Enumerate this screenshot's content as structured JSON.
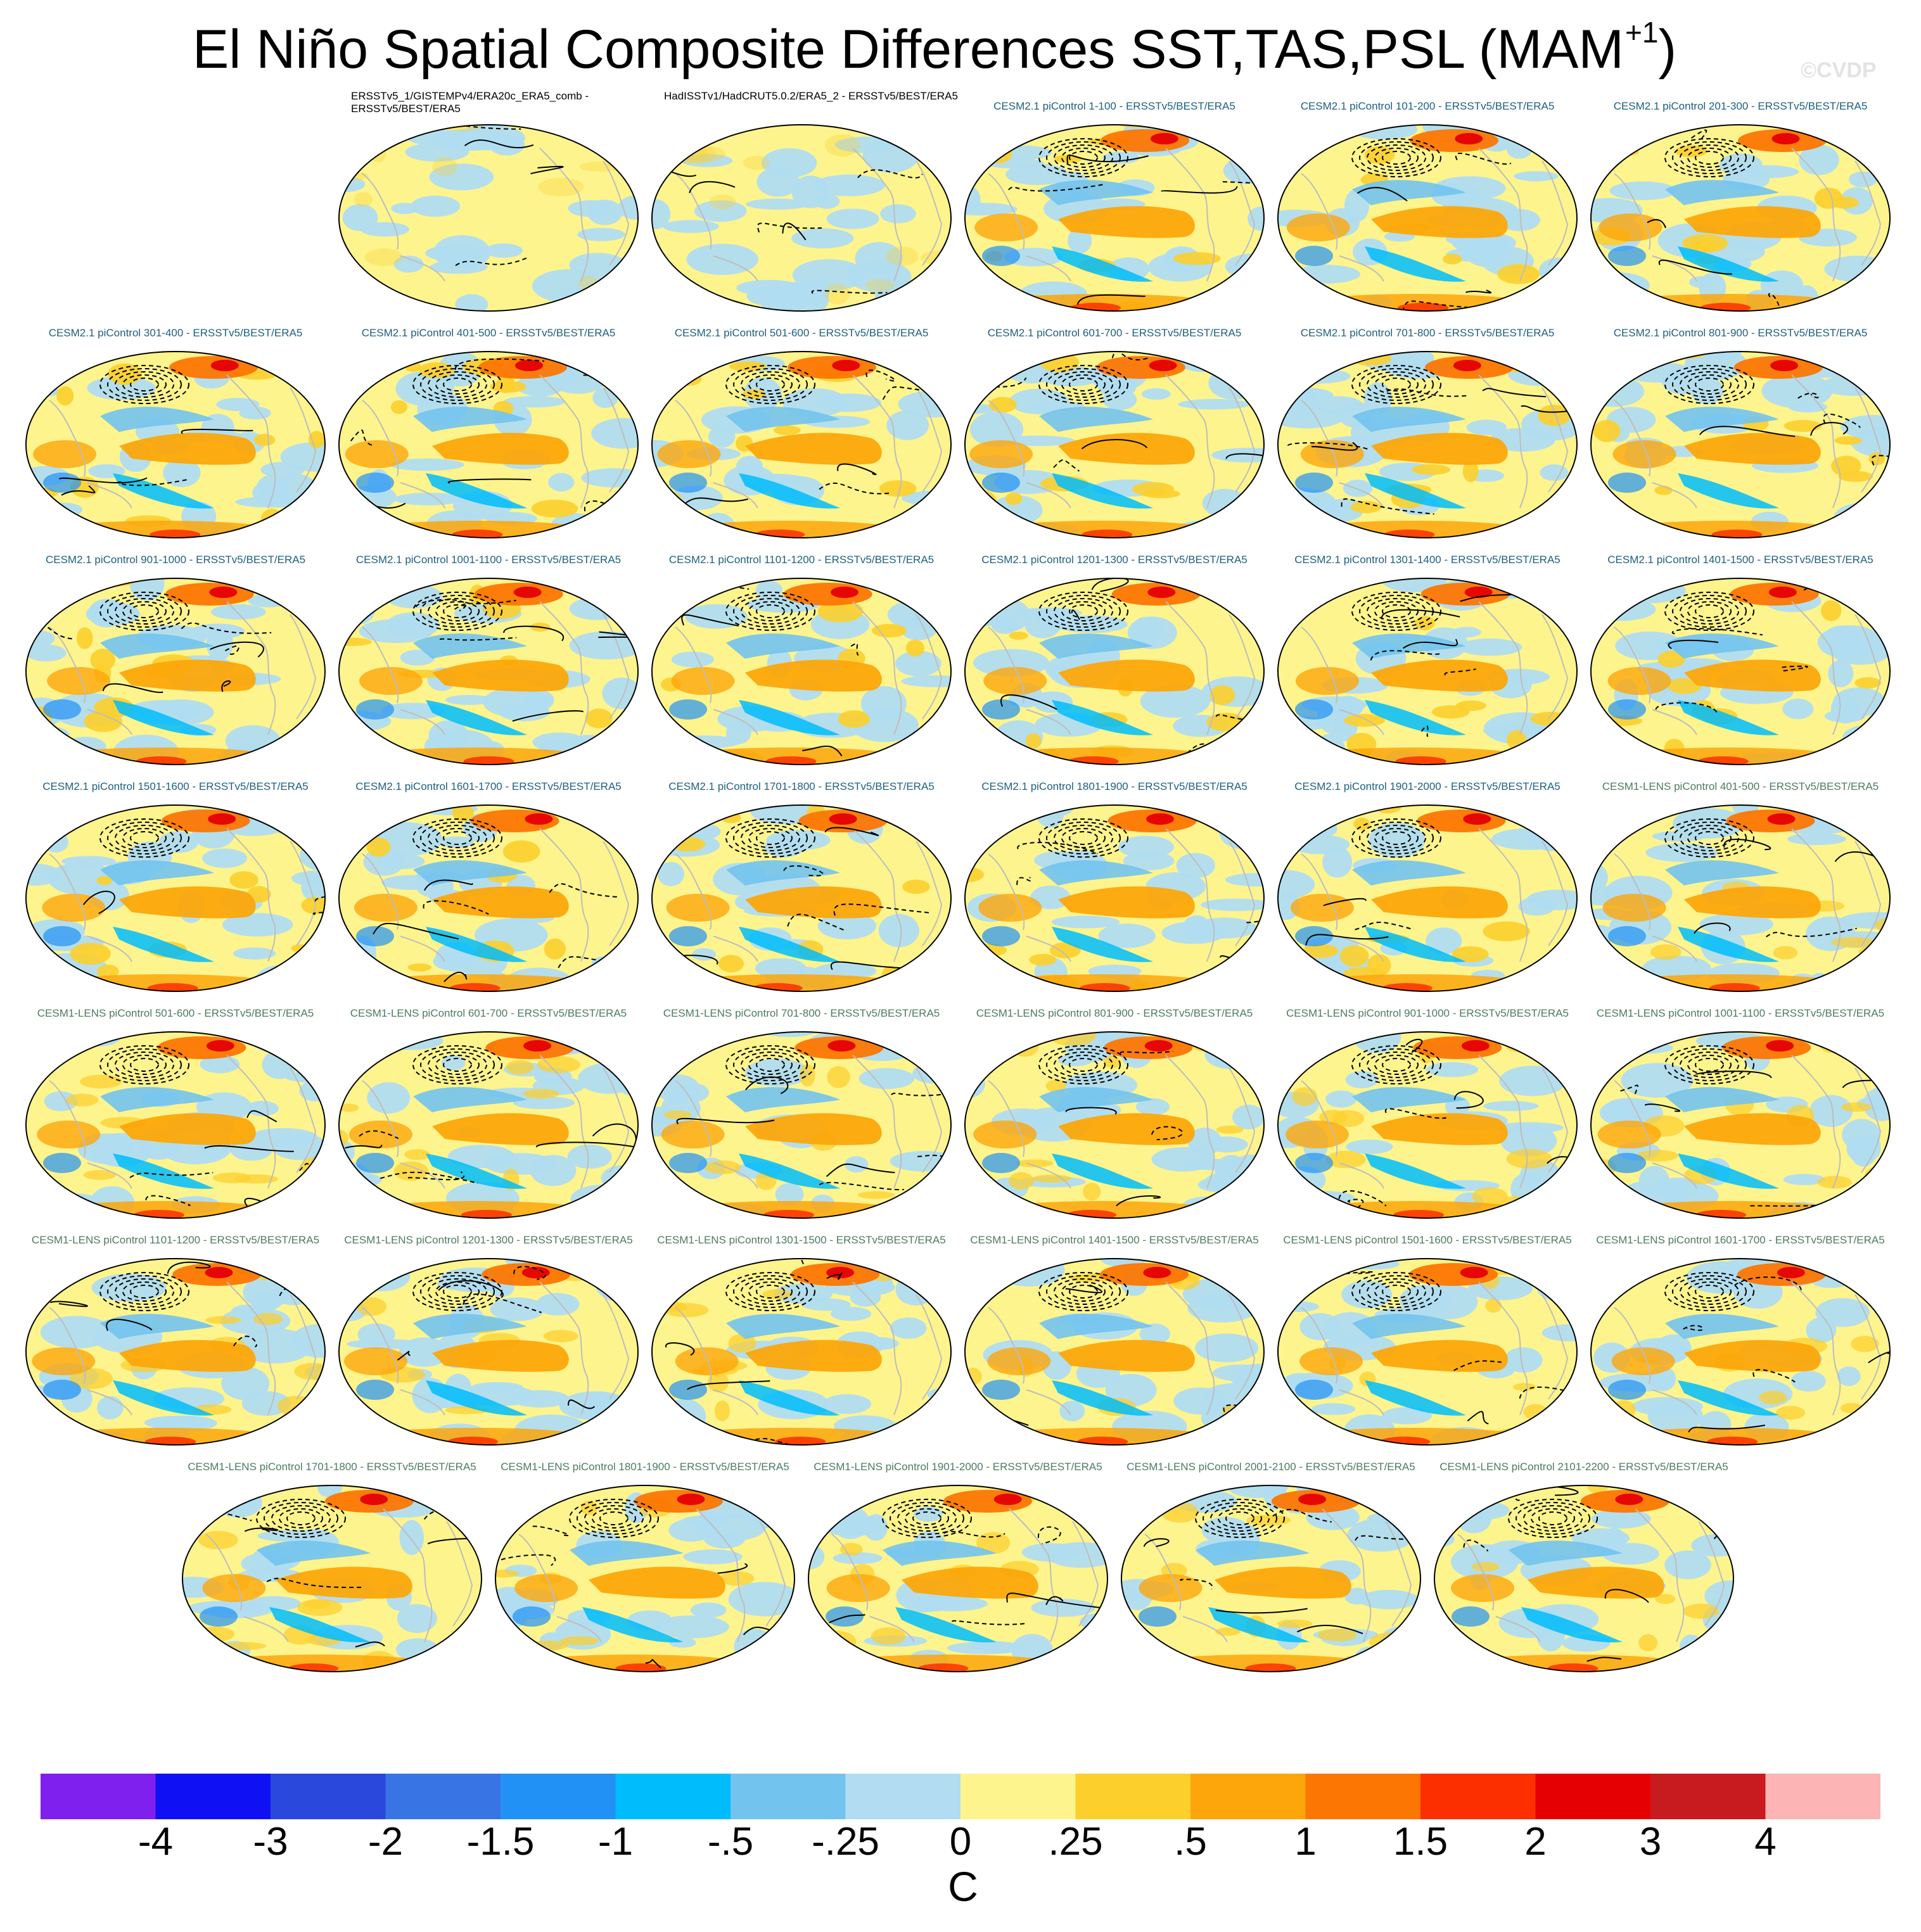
{
  "page": {
    "title": "El Niño Spatial Composite Differences SST,TAS,PSL (MAM",
    "title_superscript": "+1",
    "title_close": ")",
    "watermark": "©CVDP"
  },
  "colors": {
    "land_outline": "#bdbdbd",
    "contour": "#000000"
  },
  "chart_data": {
    "type": "heatmap",
    "description_kind": "panel grid of global maps",
    "panels": [
      {
        "title": "ERSSTv5_1/GISTEMPv4/ERA20c_ERA5_comb - ERSSTv5/BEST/ERA5",
        "group": "obs",
        "pattern": "weak"
      },
      {
        "title": "HadISSTv1/HadCRUT5.0.2/ERA5_2 - ERSSTv5/BEST/ERA5",
        "group": "obs",
        "pattern": "weak"
      },
      {
        "title": "CESM2.1 piControl 1-100 - ERSSTv5/BEST/ERA5",
        "group": "cesm2",
        "pattern": "strong"
      },
      {
        "title": "CESM2.1 piControl 101-200 - ERSSTv5/BEST/ERA5",
        "group": "cesm2",
        "pattern": "strong"
      },
      {
        "title": "CESM2.1 piControl 201-300 - ERSSTv5/BEST/ERA5",
        "group": "cesm2",
        "pattern": "strong"
      },
      {
        "title": "CESM2.1 piControl 301-400 - ERSSTv5/BEST/ERA5",
        "group": "cesm2",
        "pattern": "strong"
      },
      {
        "title": "CESM2.1 piControl 401-500 - ERSSTv5/BEST/ERA5",
        "group": "cesm2",
        "pattern": "strong"
      },
      {
        "title": "CESM2.1 piControl 501-600 - ERSSTv5/BEST/ERA5",
        "group": "cesm2",
        "pattern": "strong"
      },
      {
        "title": "CESM2.1 piControl 601-700 - ERSSTv5/BEST/ERA5",
        "group": "cesm2",
        "pattern": "strong"
      },
      {
        "title": "CESM2.1 piControl 701-800 - ERSSTv5/BEST/ERA5",
        "group": "cesm2",
        "pattern": "strong"
      },
      {
        "title": "CESM2.1 piControl 801-900 - ERSSTv5/BEST/ERA5",
        "group": "cesm2",
        "pattern": "strong"
      },
      {
        "title": "CESM2.1 piControl 901-1000 - ERSSTv5/BEST/ERA5",
        "group": "cesm2",
        "pattern": "strong"
      },
      {
        "title": "CESM2.1 piControl 1001-1100 - ERSSTv5/BEST/ERA5",
        "group": "cesm2",
        "pattern": "strong"
      },
      {
        "title": "CESM2.1 piControl 1101-1200 - ERSSTv5/BEST/ERA5",
        "group": "cesm2",
        "pattern": "strong"
      },
      {
        "title": "CESM2.1 piControl 1201-1300 - ERSSTv5/BEST/ERA5",
        "group": "cesm2",
        "pattern": "strong"
      },
      {
        "title": "CESM2.1 piControl 1301-1400 - ERSSTv5/BEST/ERA5",
        "group": "cesm2",
        "pattern": "strong"
      },
      {
        "title": "CESM2.1 piControl 1401-1500 - ERSSTv5/BEST/ERA5",
        "group": "cesm2",
        "pattern": "strong"
      },
      {
        "title": "CESM2.1 piControl 1501-1600 - ERSSTv5/BEST/ERA5",
        "group": "cesm2",
        "pattern": "strong"
      },
      {
        "title": "CESM2.1 piControl 1601-1700 - ERSSTv5/BEST/ERA5",
        "group": "cesm2",
        "pattern": "strong"
      },
      {
        "title": "CESM2.1 piControl 1701-1800 - ERSSTv5/BEST/ERA5",
        "group": "cesm2",
        "pattern": "strong"
      },
      {
        "title": "CESM2.1 piControl 1801-1900 - ERSSTv5/BEST/ERA5",
        "group": "cesm2",
        "pattern": "strong"
      },
      {
        "title": "CESM2.1 piControl 1901-2000 - ERSSTv5/BEST/ERA5",
        "group": "cesm2",
        "pattern": "strong"
      },
      {
        "title": "CESM1-LENS piControl 401-500 - ERSSTv5/BEST/ERA5",
        "group": "cesm1",
        "pattern": "moderate"
      },
      {
        "title": "CESM1-LENS piControl 501-600 - ERSSTv5/BEST/ERA5",
        "group": "cesm1",
        "pattern": "moderate"
      },
      {
        "title": "CESM1-LENS piControl 601-700 - ERSSTv5/BEST/ERA5",
        "group": "cesm1",
        "pattern": "moderate"
      },
      {
        "title": "CESM1-LENS piControl 701-800 - ERSSTv5/BEST/ERA5",
        "group": "cesm1",
        "pattern": "moderate"
      },
      {
        "title": "CESM1-LENS piControl 801-900 - ERSSTv5/BEST/ERA5",
        "group": "cesm1",
        "pattern": "moderate"
      },
      {
        "title": "CESM1-LENS piControl 901-1000 - ERSSTv5/BEST/ERA5",
        "group": "cesm1",
        "pattern": "moderate"
      },
      {
        "title": "CESM1-LENS piControl 1001-1100 - ERSSTv5/BEST/ERA5",
        "group": "cesm1",
        "pattern": "moderate"
      },
      {
        "title": "CESM1-LENS piControl 1101-1200 - ERSSTv5/BEST/ERA5",
        "group": "cesm1",
        "pattern": "moderate"
      },
      {
        "title": "CESM1-LENS piControl 1201-1300 - ERSSTv5/BEST/ERA5",
        "group": "cesm1",
        "pattern": "moderate"
      },
      {
        "title": "CESM1-LENS piControl 1301-1500 - ERSSTv5/BEST/ERA5",
        "group": "cesm1",
        "pattern": "moderate"
      },
      {
        "title": "CESM1-LENS piControl 1401-1500 - ERSSTv5/BEST/ERA5",
        "group": "cesm1",
        "pattern": "moderate"
      },
      {
        "title": "CESM1-LENS piControl 1501-1600 - ERSSTv5/BEST/ERA5",
        "group": "cesm1",
        "pattern": "moderate"
      },
      {
        "title": "CESM1-LENS piControl 1601-1700 - ERSSTv5/BEST/ERA5",
        "group": "cesm1",
        "pattern": "moderate"
      },
      {
        "title": "CESM1-LENS piControl 1701-1800 - ERSSTv5/BEST/ERA5",
        "group": "cesm1",
        "pattern": "moderate"
      },
      {
        "title": "CESM1-LENS piControl 1801-1900 - ERSSTv5/BEST/ERA5",
        "group": "cesm1",
        "pattern": "moderate"
      },
      {
        "title": "CESM1-LENS piControl 1901-2000 - ERSSTv5/BEST/ERA5",
        "group": "cesm1",
        "pattern": "moderate"
      },
      {
        "title": "CESM1-LENS piControl 2001-2100 - ERSSTv5/BEST/ERA5",
        "group": "cesm1",
        "pattern": "moderate"
      },
      {
        "title": "CESM1-LENS piControl 2101-2200 - ERSSTv5/BEST/ERA5",
        "group": "cesm1",
        "pattern": "moderate"
      }
    ],
    "colorbar": {
      "units": "C",
      "tick_labels": [
        "-4",
        "-3",
        "-2",
        "-1.5",
        "-1",
        "-.5",
        "-.25",
        "0",
        ".25",
        ".5",
        "1",
        "1.5",
        "2",
        "3",
        "4"
      ],
      "tick_values": [
        -4,
        -3,
        -2,
        -1.5,
        -1,
        -0.5,
        -0.25,
        0,
        0.25,
        0.5,
        1,
        1.5,
        2,
        3,
        4
      ],
      "colors": [
        "#7f20ee",
        "#1010f4",
        "#2a48dc",
        "#3874e4",
        "#2291f5",
        "#00bcfc",
        "#72c3ee",
        "#b1dcf1",
        "#fdf48d",
        "#fccf2c",
        "#fca60b",
        "#fc7603",
        "#fc2f00",
        "#e50003",
        "#c81b1f",
        "#fdb4b4"
      ]
    }
  }
}
